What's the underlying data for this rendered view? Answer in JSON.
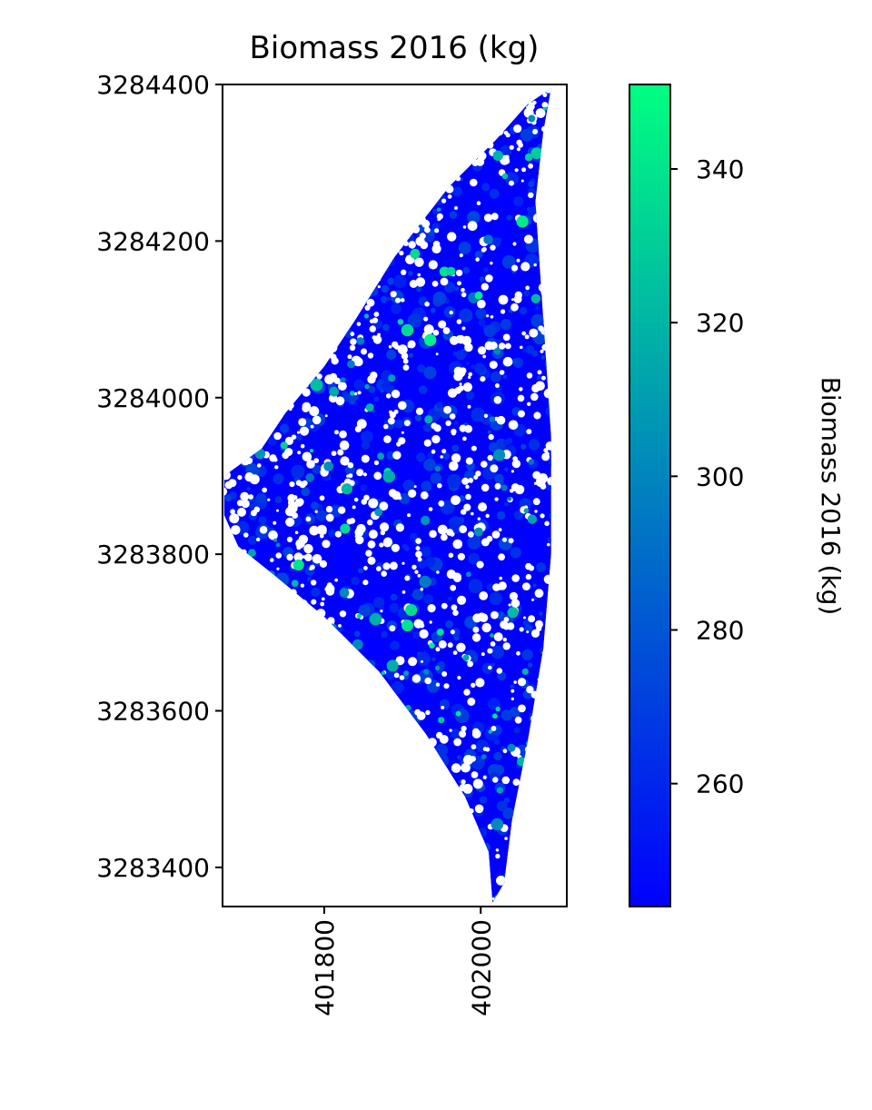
{
  "chart_data": {
    "type": "heatmap",
    "title": "Biomass 2016 (kg)",
    "xlabel": "",
    "ylabel": "",
    "xlim": [
      401670,
      402110
    ],
    "ylim": [
      3283350,
      3284400
    ],
    "x_ticks": [
      {
        "value": 401800,
        "label": "401800"
      },
      {
        "value": 402000,
        "label": "402000"
      }
    ],
    "y_ticks": [
      {
        "value": 3283400,
        "label": "3283400"
      },
      {
        "value": 3283600,
        "label": "3283600"
      },
      {
        "value": 3283800,
        "label": "3283800"
      },
      {
        "value": 3284000,
        "label": "3284000"
      },
      {
        "value": 3284200,
        "label": "3284200"
      },
      {
        "value": 3284400,
        "label": "3284400"
      }
    ],
    "region_outline": [
      [
        402090,
        3284395
      ],
      [
        402060,
        3284375
      ],
      [
        402020,
        3284330
      ],
      [
        401960,
        3284270
      ],
      [
        401890,
        3284180
      ],
      [
        401840,
        3284100
      ],
      [
        401800,
        3284040
      ],
      [
        401750,
        3283980
      ],
      [
        401720,
        3283935
      ],
      [
        401672,
        3283900
      ],
      [
        401672,
        3283850
      ],
      [
        401690,
        3283810
      ],
      [
        401740,
        3283770
      ],
      [
        401800,
        3283720
      ],
      [
        401870,
        3283650
      ],
      [
        401930,
        3283570
      ],
      [
        401980,
        3283490
      ],
      [
        402010,
        3283420
      ],
      [
        402015,
        3283355
      ],
      [
        402030,
        3283380
      ],
      [
        402040,
        3283460
      ],
      [
        402060,
        3283560
      ],
      [
        402080,
        3283680
      ],
      [
        402090,
        3283800
      ],
      [
        402090,
        3283950
      ],
      [
        402080,
        3284100
      ],
      [
        402070,
        3284250
      ],
      [
        402080,
        3284340
      ],
      [
        402090,
        3284395
      ]
    ],
    "colorbar": {
      "label": "Biomass 2016 (kg)",
      "colormap": "winter",
      "range": [
        244,
        351
      ],
      "ticks": [
        260,
        280,
        300,
        320,
        340
      ],
      "color_low": "#0000ff",
      "color_high": "#00ff80"
    },
    "grid": false,
    "legend": "none"
  }
}
